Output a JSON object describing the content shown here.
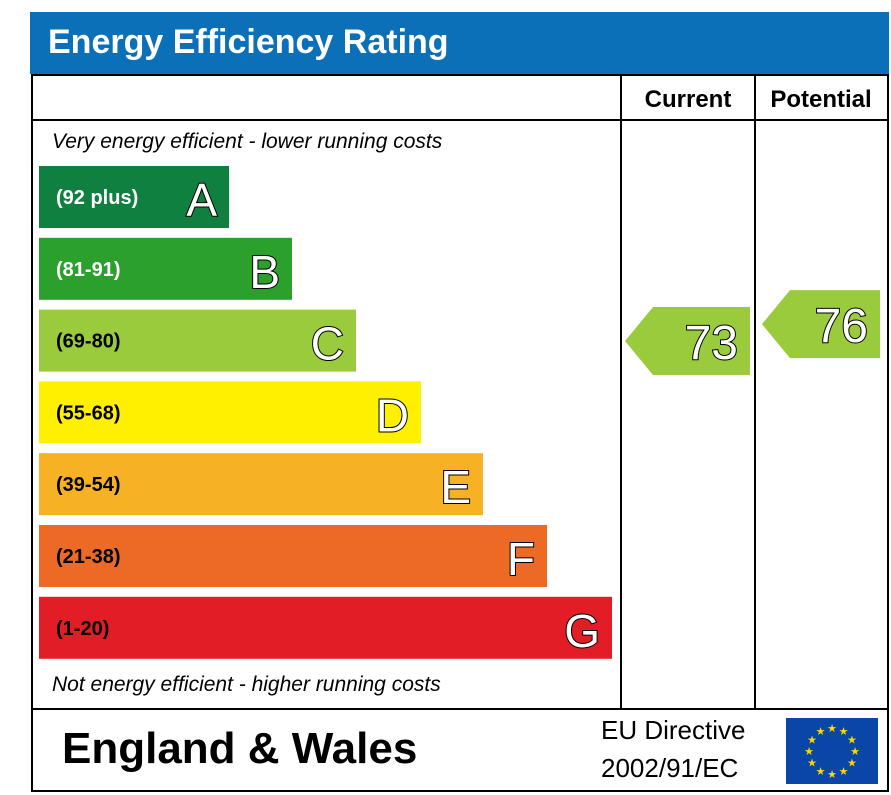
{
  "chart_data": {
    "type": "bar",
    "title": "Energy Efficiency Rating",
    "columns": {
      "current": "Current",
      "potential": "Potential"
    },
    "top_note": "Very energy efficient - lower running costs",
    "bottom_note": "Not energy efficient - higher running costs",
    "categories": [
      "A",
      "B",
      "C",
      "D",
      "E",
      "F",
      "G"
    ],
    "bands": [
      {
        "letter": "A",
        "range": "(92 plus)",
        "min": 92,
        "max": 100,
        "color": "#0f8040"
      },
      {
        "letter": "B",
        "range": "(81-91)",
        "min": 81,
        "max": 91,
        "color": "#2ca02c"
      },
      {
        "letter": "C",
        "range": "(69-80)",
        "min": 69,
        "max": 80,
        "color": "#9acb3c"
      },
      {
        "letter": "D",
        "range": "(55-68)",
        "min": 55,
        "max": 68,
        "color": "#fff000"
      },
      {
        "letter": "E",
        "range": "(39-54)",
        "min": 39,
        "max": 54,
        "color": "#f7b125"
      },
      {
        "letter": "F",
        "range": "(21-38)",
        "min": 21,
        "max": 38,
        "color": "#ec6a25"
      },
      {
        "letter": "G",
        "range": "(1-20)",
        "min": 1,
        "max": 20,
        "color": "#e31d25"
      }
    ],
    "current": {
      "value": 73,
      "band": "C",
      "color": "#9acb3c"
    },
    "potential": {
      "value": 76,
      "band": "C",
      "color": "#9acb3c"
    },
    "footer": {
      "region": "England & Wales",
      "directive_line1": "EU Directive",
      "directive_line2": "2002/91/EC"
    },
    "colors": {
      "header_bg": "#0c70b8",
      "header_text": "#ffffff",
      "eu_flag_bg": "#0a46a8",
      "eu_star": "#ffd400"
    }
  }
}
